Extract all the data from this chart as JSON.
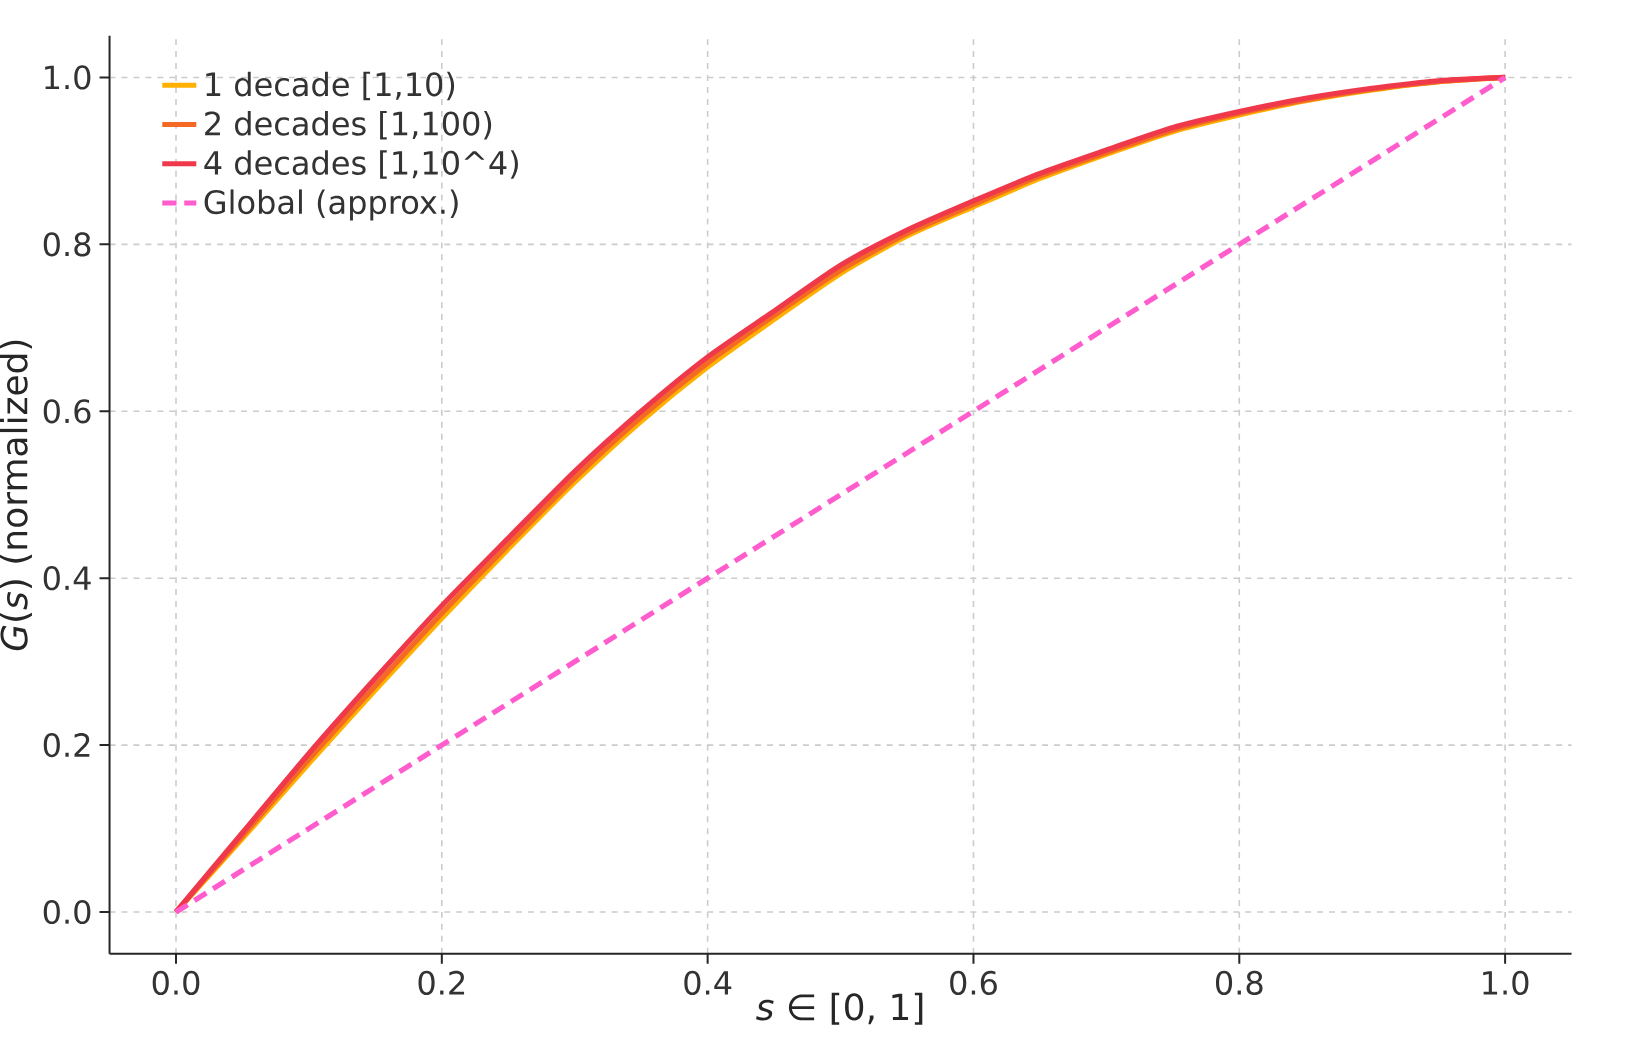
{
  "chart_data": {
    "type": "line",
    "xlabel": "*s* ∈ [0, 1]",
    "ylabel": "*G*(*s*) (normalized)",
    "xlim": [
      -0.05,
      1.05
    ],
    "ylim": [
      -0.05,
      1.05
    ],
    "xticks": [
      {
        "value": 0,
        "label": "0.0"
      },
      0.2,
      0.4,
      0.6,
      0.8,
      {
        "value": 1,
        "label": "1.0"
      }
    ],
    "yticks": [
      {
        "value": 0,
        "label": "0.0"
      },
      0.2,
      0.4,
      0.6,
      0.8,
      {
        "value": 1,
        "label": "1.0"
      }
    ],
    "grid": true,
    "legend": "top left",
    "x": [
      0,
      0.05,
      0.1,
      0.15,
      0.2,
      0.25,
      0.3,
      0.35,
      0.4,
      0.45,
      0.5,
      0.55,
      0.6,
      0.65,
      0.7,
      0.75,
      0.8,
      0.85,
      0.9,
      0.95,
      1
    ],
    "series": [
      {
        "name": "1 decade [1,10)",
        "color": "#ffb000",
        "line_style": "solid",
        "values": [
          0,
          0.088,
          0.178,
          0.266,
          0.352,
          0.435,
          0.515,
          0.588,
          0.653,
          0.71,
          0.765,
          0.81,
          0.845,
          0.879,
          0.908,
          0.935,
          0.955,
          0.972,
          0.985,
          0.995,
          1
        ]
      },
      {
        "name": "2 decades [1,100)",
        "color": "#f46a25",
        "line_style": "solid",
        "values": [
          0,
          0.091,
          0.183,
          0.271,
          0.358,
          0.44,
          0.52,
          0.593,
          0.658,
          0.715,
          0.769,
          0.813,
          0.848,
          0.882,
          0.91,
          0.937,
          0.957,
          0.973,
          0.986,
          0.995,
          1
        ]
      },
      {
        "name": "4 decades [1,10^4)",
        "color": "#f0384b",
        "line_style": "solid",
        "values": [
          0,
          0.095,
          0.19,
          0.28,
          0.367,
          0.448,
          0.528,
          0.6,
          0.665,
          0.72,
          0.775,
          0.817,
          0.852,
          0.885,
          0.913,
          0.94,
          0.959,
          0.975,
          0.987,
          0.996,
          1
        ]
      },
      {
        "name": "Global (approx.)",
        "color": "#ff5ccd",
        "line_style": "dashed",
        "x": [
          0,
          1
        ],
        "values": [
          0,
          1
        ]
      }
    ]
  }
}
